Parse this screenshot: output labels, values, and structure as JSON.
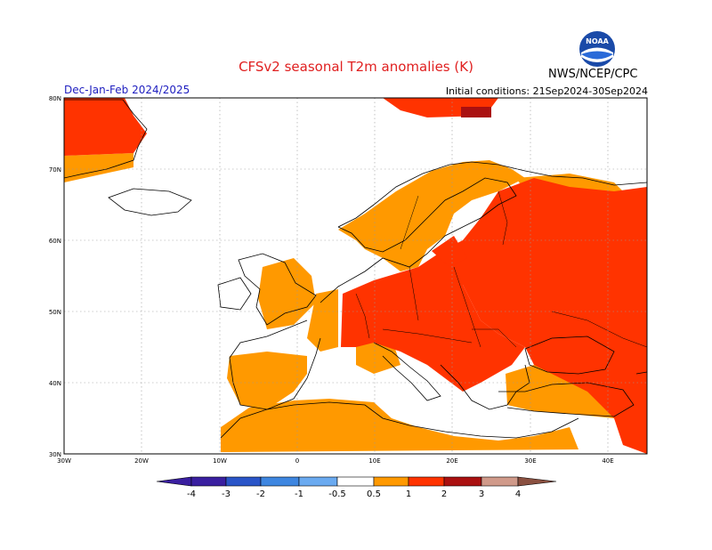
{
  "header": {
    "title": "CFSv2 seasonal T2m anomalies (K)",
    "period": "Dec-Jan-Feb 2024/2025",
    "initial_conditions": "Initial conditions: 21Sep2024-30Sep2024",
    "agency": "NWS/NCEP/CPC",
    "logo_text": "NOAA"
  },
  "map": {
    "lon_range": [
      -30,
      45
    ],
    "lat_range": [
      30,
      80
    ],
    "lat_labels": [
      "80N",
      "70N",
      "60N",
      "50N",
      "40N",
      "30N"
    ],
    "lon_labels": [
      "30W",
      "20W",
      "10W",
      "0",
      "10E",
      "20E",
      "30E",
      "40E"
    ]
  },
  "colorbar": {
    "labels": [
      "-4",
      "-3",
      "-2",
      "-1",
      "-0.5",
      "0.5",
      "1",
      "2",
      "3",
      "4"
    ],
    "colors": [
      "#3a1fa0",
      "#2a55c8",
      "#3e86e0",
      "#6aaaf0",
      "#ffffff",
      "#ff9900",
      "#ff3300",
      "#aa1010",
      "#d09a8a",
      "#8a5040"
    ]
  },
  "colors": {
    "anomaly_05_1": "#ff9900",
    "anomaly_1_2": "#ff3300",
    "anomaly_2_3": "#aa1010",
    "title": "#e02020",
    "period": "#2020c0"
  }
}
